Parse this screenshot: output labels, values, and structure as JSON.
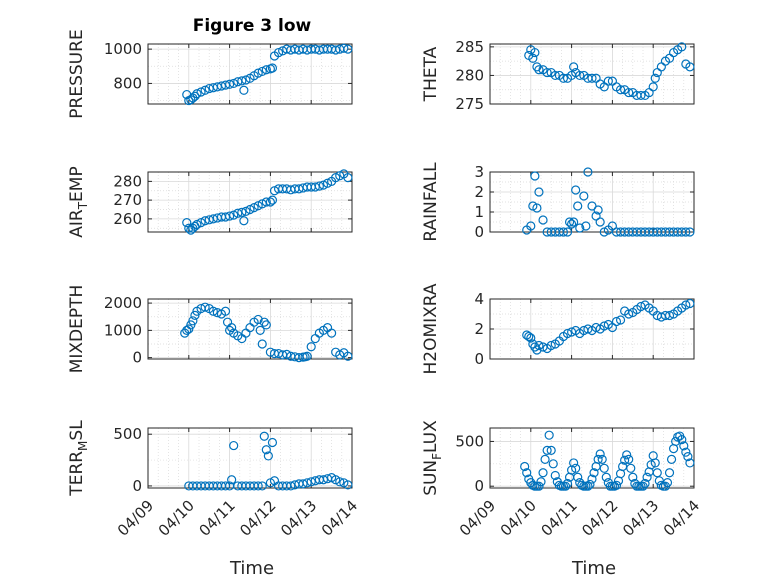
{
  "figure": {
    "title": "Figure 3 low",
    "xlabel": "Time"
  },
  "colors": {
    "marker": "#0072BD",
    "axes": "#262626",
    "grid": "#d9d9d9"
  },
  "x_ticks": [
    "04/09",
    "04/10",
    "04/11",
    "04/12",
    "04/13",
    "04/14"
  ],
  "chart_data": [
    {
      "type": "scatter",
      "ylabel": "PRESSURE",
      "xlim": [
        0,
        5
      ],
      "ylim": [
        680,
        1030
      ],
      "yticks": [
        800,
        1000
      ],
      "ytick_labels": [
        "800",
        "1000"
      ],
      "grid": true,
      "x": [
        0.95,
        1.0,
        1.05,
        1.1,
        1.15,
        1.2,
        1.3,
        1.4,
        1.5,
        1.6,
        1.7,
        1.8,
        1.9,
        2.0,
        2.1,
        2.2,
        2.3,
        2.35,
        2.4,
        2.5,
        2.6,
        2.7,
        2.8,
        2.9,
        3.0,
        3.05,
        3.1,
        3.2,
        3.3,
        3.4,
        3.5,
        3.6,
        3.7,
        3.8,
        3.9,
        4.0,
        4.1,
        4.2,
        4.3,
        4.4,
        4.5,
        4.6,
        4.7,
        4.8,
        4.9
      ],
      "y": [
        735,
        700,
        705,
        715,
        725,
        740,
        750,
        760,
        770,
        775,
        780,
        785,
        790,
        795,
        800,
        810,
        815,
        760,
        820,
        830,
        845,
        860,
        870,
        880,
        885,
        890,
        960,
        980,
        990,
        1000,
        995,
        1000,
        995,
        1000,
        995,
        1000,
        1000,
        995,
        1000,
        1000,
        1000,
        995,
        1000,
        1005,
        1000
      ]
    },
    {
      "type": "scatter",
      "ylabel": "THETA",
      "xlim": [
        0,
        5
      ],
      "ylim": [
        275,
        285.5
      ],
      "yticks": [
        275,
        280,
        285
      ],
      "ytick_labels": [
        "275",
        "280",
        "285"
      ],
      "grid": true,
      "x": [
        0.95,
        1.0,
        1.05,
        1.1,
        1.15,
        1.2,
        1.3,
        1.4,
        1.5,
        1.6,
        1.7,
        1.8,
        1.9,
        2.0,
        2.05,
        2.1,
        2.2,
        2.3,
        2.4,
        2.5,
        2.6,
        2.7,
        2.8,
        2.9,
        3.0,
        3.1,
        3.2,
        3.3,
        3.4,
        3.5,
        3.6,
        3.7,
        3.8,
        3.9,
        4.0,
        4.05,
        4.1,
        4.2,
        4.3,
        4.4,
        4.5,
        4.6,
        4.7,
        4.8,
        4.9
      ],
      "y": [
        283.5,
        284.5,
        283,
        284,
        281.5,
        281,
        281,
        280.5,
        280.5,
        280,
        280,
        279.5,
        279.5,
        280,
        281.5,
        280.5,
        280,
        280,
        279.5,
        279.5,
        279.5,
        278.5,
        278,
        279,
        279,
        278,
        277.5,
        277.5,
        277,
        277,
        276.5,
        276.5,
        276.5,
        277,
        278,
        279.5,
        280.5,
        281.5,
        282.5,
        283,
        284,
        284.5,
        285,
        282,
        281.5
      ]
    },
    {
      "type": "scatter",
      "ylabel": "AIR_TEMP",
      "xlim": [
        0,
        5
      ],
      "ylim": [
        253,
        285
      ],
      "yticks": [
        260,
        270,
        280
      ],
      "ytick_labels": [
        "260",
        "270",
        "280"
      ],
      "grid": true,
      "x": [
        0.95,
        1.0,
        1.05,
        1.1,
        1.15,
        1.2,
        1.3,
        1.4,
        1.5,
        1.6,
        1.7,
        1.8,
        1.9,
        2.0,
        2.1,
        2.2,
        2.3,
        2.35,
        2.4,
        2.5,
        2.6,
        2.7,
        2.8,
        2.9,
        3.0,
        3.05,
        3.1,
        3.2,
        3.3,
        3.4,
        3.5,
        3.6,
        3.7,
        3.8,
        3.9,
        4.0,
        4.1,
        4.2,
        4.3,
        4.4,
        4.5,
        4.6,
        4.7,
        4.8,
        4.9
      ],
      "y": [
        258,
        255,
        254,
        255,
        256,
        257,
        258,
        259,
        259.5,
        260,
        260.5,
        261,
        261,
        261.5,
        262,
        263,
        263.5,
        259,
        264,
        265,
        266,
        267,
        268,
        269,
        269,
        270,
        275,
        276,
        276,
        276,
        275.5,
        276,
        276,
        276.5,
        277,
        277,
        277,
        277.5,
        278,
        279,
        280,
        282,
        283,
        284,
        282
      ]
    },
    {
      "type": "scatter",
      "ylabel": "RAINFALL",
      "xlim": [
        0,
        5
      ],
      "ylim": [
        0,
        3
      ],
      "yticks": [
        0,
        1,
        2,
        3
      ],
      "ytick_labels": [
        "0",
        "1",
        "2",
        "3"
      ],
      "grid": true,
      "x": [
        0.9,
        1.0,
        1.05,
        1.1,
        1.15,
        1.2,
        1.3,
        1.4,
        1.5,
        1.6,
        1.7,
        1.8,
        1.9,
        1.95,
        2.0,
        2.05,
        2.1,
        2.15,
        2.2,
        2.3,
        2.35,
        2.4,
        2.5,
        2.6,
        2.65,
        2.7,
        2.8,
        2.9,
        3.0,
        3.1,
        3.2,
        3.3,
        3.4,
        3.5,
        3.6,
        3.7,
        3.8,
        3.9,
        4.0,
        4.1,
        4.2,
        4.3,
        4.4,
        4.5,
        4.6,
        4.7,
        4.8,
        4.9
      ],
      "y": [
        0.1,
        0.3,
        1.3,
        2.8,
        1.2,
        2.0,
        0.6,
        0,
        0,
        0,
        0,
        0,
        0,
        0.5,
        0.4,
        0.5,
        2.1,
        1.3,
        0.2,
        1.8,
        0.3,
        3.0,
        1.3,
        0.8,
        1.1,
        0.5,
        0,
        0.1,
        0.3,
        0,
        0,
        0,
        0,
        0,
        0,
        0,
        0,
        0,
        0,
        0,
        0,
        0,
        0,
        0,
        0,
        0,
        0,
        0
      ]
    },
    {
      "type": "scatter",
      "ylabel": "MIXDEPTH",
      "xlim": [
        0,
        5
      ],
      "ylim": [
        -50,
        2150
      ],
      "yticks": [
        0,
        1000,
        2000
      ],
      "ytick_labels": [
        "0",
        "1000",
        "2000"
      ],
      "grid": true,
      "x": [
        0.9,
        0.95,
        1.0,
        1.05,
        1.1,
        1.15,
        1.2,
        1.3,
        1.4,
        1.5,
        1.6,
        1.7,
        1.8,
        1.9,
        1.95,
        2.0,
        2.05,
        2.1,
        2.2,
        2.3,
        2.4,
        2.5,
        2.6,
        2.7,
        2.75,
        2.8,
        2.85,
        2.9,
        3.0,
        3.1,
        3.2,
        3.3,
        3.4,
        3.5,
        3.6,
        3.7,
        3.8,
        3.85,
        3.9,
        4.0,
        4.1,
        4.2,
        4.3,
        4.4,
        4.5,
        4.6,
        4.7,
        4.8,
        4.9
      ],
      "y": [
        900,
        1000,
        1050,
        1200,
        1350,
        1550,
        1700,
        1800,
        1850,
        1800,
        1700,
        1650,
        1600,
        1700,
        1300,
        1000,
        1100,
        900,
        800,
        700,
        900,
        1100,
        1300,
        1400,
        1000,
        500,
        1300,
        1200,
        200,
        150,
        150,
        100,
        120,
        50,
        30,
        0,
        20,
        30,
        50,
        400,
        700,
        900,
        1000,
        1100,
        900,
        200,
        100,
        180,
        50
      ]
    },
    {
      "type": "scatter",
      "ylabel": "H2OMIXRA",
      "xlim": [
        0,
        5
      ],
      "ylim": [
        0,
        4
      ],
      "yticks": [
        0,
        2,
        4
      ],
      "ytick_labels": [
        "0",
        "2",
        "4"
      ],
      "grid": true,
      "x": [
        0.9,
        0.95,
        1.0,
        1.05,
        1.1,
        1.15,
        1.2,
        1.3,
        1.4,
        1.5,
        1.6,
        1.7,
        1.8,
        1.9,
        2.0,
        2.1,
        2.2,
        2.3,
        2.4,
        2.5,
        2.6,
        2.7,
        2.8,
        2.9,
        3.0,
        3.1,
        3.2,
        3.3,
        3.4,
        3.5,
        3.6,
        3.7,
        3.8,
        3.9,
        4.0,
        4.1,
        4.2,
        4.3,
        4.4,
        4.5,
        4.6,
        4.7,
        4.8,
        4.9
      ],
      "y": [
        1.6,
        1.5,
        1.4,
        1.0,
        0.8,
        0.6,
        0.9,
        0.8,
        0.7,
        0.9,
        1.0,
        1.2,
        1.5,
        1.7,
        1.8,
        1.9,
        1.7,
        1.9,
        2.0,
        1.9,
        2.1,
        2.0,
        2.2,
        2.3,
        2.1,
        2.5,
        2.6,
        3.2,
        3.0,
        3.1,
        3.3,
        3.5,
        3.6,
        3.4,
        3.2,
        2.9,
        2.8,
        2.9,
        2.9,
        3.0,
        3.2,
        3.4,
        3.6,
        3.7
      ]
    },
    {
      "type": "scatter",
      "ylabel": "TERR_MSL",
      "xlim": [
        0,
        5
      ],
      "ylim": [
        -20,
        560
      ],
      "yticks": [
        0,
        500
      ],
      "ytick_labels": [
        "0",
        "500"
      ],
      "grid": true,
      "x": [
        1.0,
        1.1,
        1.2,
        1.3,
        1.4,
        1.5,
        1.6,
        1.7,
        1.8,
        1.9,
        2.0,
        2.05,
        2.1,
        2.2,
        2.3,
        2.4,
        2.5,
        2.6,
        2.7,
        2.8,
        2.85,
        2.9,
        2.95,
        3.0,
        3.05,
        3.1,
        3.2,
        3.3,
        3.4,
        3.5,
        3.6,
        3.7,
        3.8,
        3.9,
        4.0,
        4.1,
        4.2,
        4.3,
        4.4,
        4.5,
        4.6,
        4.7,
        4.8,
        4.9
      ],
      "y": [
        0,
        0,
        0,
        0,
        0,
        0,
        0,
        0,
        0,
        0,
        0,
        60,
        390,
        0,
        0,
        0,
        0,
        0,
        0,
        0,
        480,
        350,
        290,
        30,
        420,
        50,
        0,
        0,
        0,
        0,
        10,
        20,
        20,
        30,
        40,
        50,
        60,
        60,
        70,
        80,
        60,
        40,
        30,
        10
      ]
    },
    {
      "type": "scatter",
      "ylabel": "SUN_FLUX",
      "xlim": [
        0,
        5
      ],
      "ylim": [
        -20,
        650
      ],
      "yticks": [
        0,
        500
      ],
      "ytick_labels": [
        "0",
        "500"
      ],
      "grid": true,
      "x": [
        0.85,
        0.9,
        0.95,
        1.0,
        1.05,
        1.1,
        1.15,
        1.2,
        1.25,
        1.3,
        1.35,
        1.4,
        1.45,
        1.5,
        1.55,
        1.6,
        1.65,
        1.7,
        1.75,
        1.8,
        1.85,
        1.9,
        1.95,
        2.0,
        2.05,
        2.1,
        2.15,
        2.2,
        2.25,
        2.3,
        2.35,
        2.4,
        2.45,
        2.5,
        2.55,
        2.6,
        2.65,
        2.7,
        2.75,
        2.8,
        2.85,
        2.9,
        2.95,
        3.0,
        3.05,
        3.1,
        3.15,
        3.2,
        3.25,
        3.3,
        3.35,
        3.4,
        3.45,
        3.5,
        3.55,
        3.6,
        3.65,
        3.7,
        3.75,
        3.8,
        3.85,
        3.9,
        3.95,
        4.0,
        4.05,
        4.1,
        4.15,
        4.2,
        4.25,
        4.3,
        4.35,
        4.4,
        4.45,
        4.5,
        4.55,
        4.6,
        4.65,
        4.7,
        4.75,
        4.8,
        4.85,
        4.9
      ],
      "y": [
        220,
        150,
        80,
        40,
        10,
        0,
        0,
        0,
        50,
        150,
        300,
        400,
        570,
        400,
        250,
        120,
        50,
        10,
        0,
        0,
        0,
        30,
        100,
        180,
        260,
        200,
        100,
        40,
        10,
        0,
        0,
        0,
        20,
        80,
        150,
        220,
        300,
        360,
        300,
        200,
        100,
        40,
        0,
        0,
        0,
        10,
        60,
        140,
        220,
        290,
        350,
        300,
        200,
        100,
        30,
        0,
        0,
        0,
        0,
        30,
        100,
        160,
        240,
        340,
        260,
        150,
        60,
        10,
        0,
        0,
        40,
        150,
        300,
        420,
        500,
        550,
        560,
        520,
        450,
        380,
        330,
        260
      ]
    }
  ]
}
